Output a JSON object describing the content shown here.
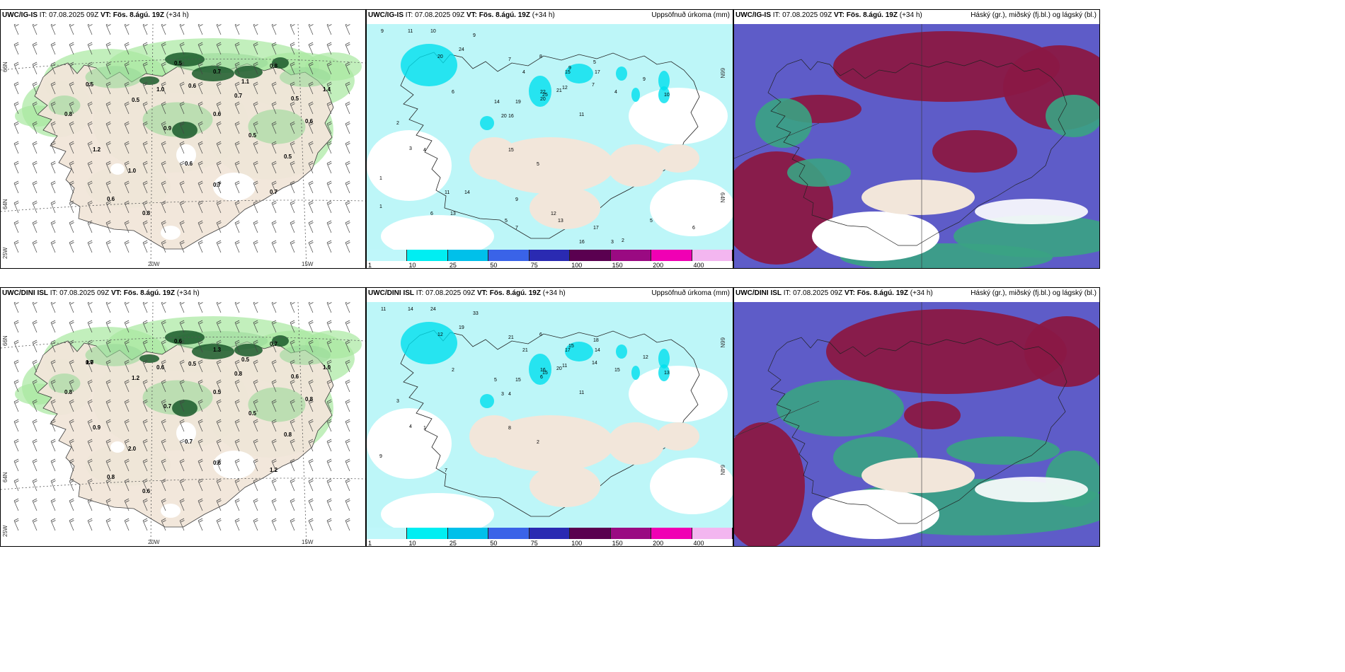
{
  "panels": [
    {
      "id": "p1",
      "title_model": "UWC/IG-IS",
      "title_it": " IT: 07.08.2025 09Z ",
      "title_vt_label": "VT:",
      "title_vt": " Fös. 8.ágú. 19Z",
      "title_lead": " (+34 h)",
      "right_label": "",
      "lat_labels": [
        "66N",
        "64N"
      ],
      "lon_labels": [
        "20W",
        "15W"
      ],
      "corner_label": "25W",
      "values": [
        "0.5",
        "0.5",
        "0.7",
        "0.8",
        "0.5",
        "0.6",
        "0.7",
        "0.5",
        "0.6",
        "0.5",
        "1.0",
        "0.9",
        "0.5",
        "0.7",
        "1.2",
        "1.4",
        "0.8",
        "1.0",
        "1.1",
        "0.6",
        "0.6",
        "0.7",
        "0.8",
        "0.6"
      ]
    },
    {
      "id": "p2",
      "title_model": "UWC/IG-IS",
      "title_it": " IT: 07.08.2025 09Z ",
      "title_vt_label": "VT:",
      "title_vt": " Fös. 8.ágú. 19Z",
      "title_lead": " (+34 h)",
      "right_label": "Uppsöfnuð úrkoma (mm)",
      "lat_labels": [
        "66N",
        "64N"
      ],
      "values": [
        "9",
        "11",
        "10",
        "9",
        "7",
        "8",
        "9",
        "5",
        "24",
        "20",
        "15",
        "4",
        "22",
        "21",
        "17",
        "9",
        "10",
        "19",
        "25",
        "20",
        "14",
        "16",
        "20",
        "6",
        "11",
        "4",
        "7",
        "12",
        "15",
        "5",
        "2",
        "3",
        "4",
        "1",
        "11",
        "14",
        "13",
        "6",
        "9",
        "5",
        "7",
        "12",
        "13",
        "16",
        "17",
        "3",
        "2",
        "5",
        "1",
        "6"
      ]
    },
    {
      "id": "p3",
      "title_model": "UWC/IG-IS",
      "title_it": " IT: 07.08.2025 09Z ",
      "title_vt_label": "VT:",
      "title_vt": " Fös. 8.ágú. 19Z",
      "title_lead": " (+34 h)",
      "right_label": "Háský (gr.), miðský (fj.bl.) og lágský (bl.)"
    },
    {
      "id": "p4",
      "title_model": "UWC/DINI ISL",
      "title_it": " IT: 07.08.2025 09Z ",
      "title_vt_label": "VT:",
      "title_vt": " Fös. 8.ágú. 19Z",
      "title_lead": " (+34 h)",
      "right_label": "",
      "lat_labels": [
        "66N",
        "64N"
      ],
      "lon_labels": [
        "20W",
        "15W"
      ],
      "corner_label": "25W",
      "values": [
        "0.7",
        "0.6",
        "1.3",
        "0.7",
        "1.2",
        "0.5",
        "0.8",
        "0.6",
        "0.8",
        "0.5",
        "2.0",
        "0.7",
        "0.8",
        "0.6",
        "0.9",
        "1.0",
        "0.8",
        "0.6",
        "0.5",
        "0.7",
        "0.8",
        "1.2",
        "0.6",
        "0.5",
        "1.0"
      ]
    },
    {
      "id": "p5",
      "title_model": "UWC/DINI ISL",
      "title_it": " IT: 07.08.2025 09Z ",
      "title_vt_label": "VT:",
      "title_vt": " Fös. 8.ágú. 19Z",
      "title_lead": " (+34 h)",
      "right_label": "Uppsöfnuð úrkoma (mm)",
      "lat_labels": [
        "66N",
        "64N"
      ],
      "values": [
        "11",
        "14",
        "24",
        "33",
        "21",
        "6",
        "15",
        "18",
        "19",
        "12",
        "17",
        "21",
        "16",
        "20",
        "14",
        "12",
        "13",
        "15",
        "15",
        "6",
        "5",
        "4",
        "3",
        "2",
        "11",
        "15",
        "14",
        "11",
        "8",
        "2",
        "3",
        "4",
        "1",
        "9",
        "7"
      ]
    },
    {
      "id": "p6",
      "title_model": "UWC/DINI ISL",
      "title_it": " IT: 07.08.2025 09Z ",
      "title_vt_label": "VT:",
      "title_vt": " Fös. 8.ágú. 19Z",
      "title_lead": " (+34 h)",
      "right_label": "Háský (gr.), miðský (fj.bl.) og lágský (bl.)"
    }
  ],
  "colorbar": {
    "ticks": [
      "1",
      "10",
      "25",
      "50",
      "75",
      "100",
      "150",
      "200",
      "400"
    ],
    "colors": [
      "#bff7fa",
      "#00eef2",
      "#00c0ea",
      "#3a63e8",
      "#2a2ab2",
      "#5a0050",
      "#9a0a82",
      "#f000b4",
      "#f3b6f0"
    ]
  },
  "colors": {
    "land": "#f2e6da",
    "precip_light": "#bdf6f8",
    "rain_green": "#a8e8a0",
    "rain_dark": "#1a5a2a",
    "high_cloud": "#8a1845",
    "mid_cloud": "#5e5cc8",
    "low_cloud": "#3aa383"
  }
}
